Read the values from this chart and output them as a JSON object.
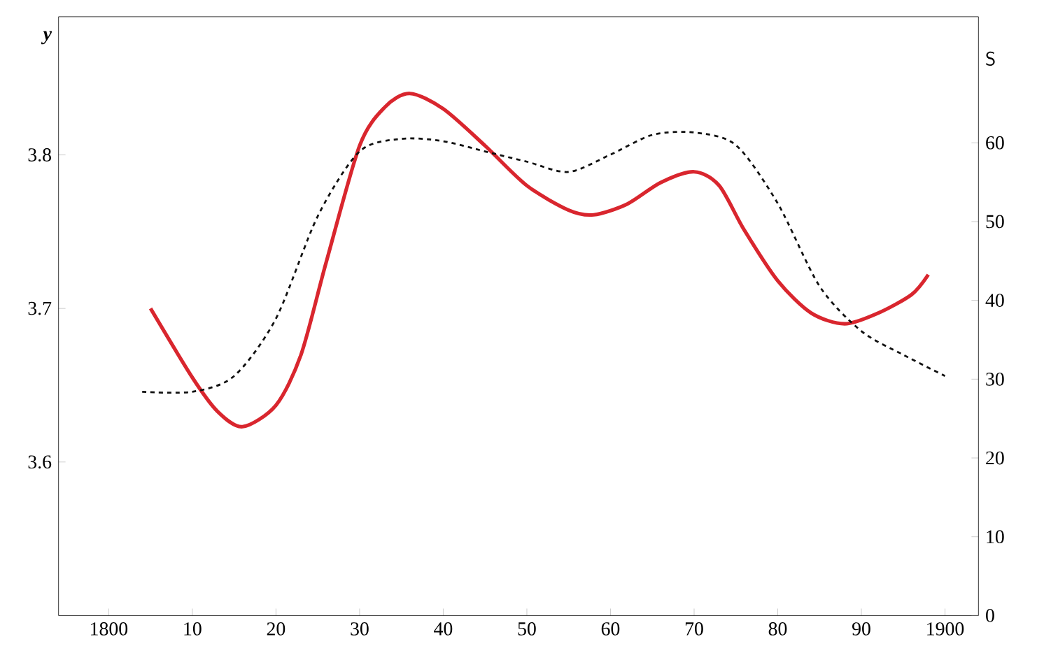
{
  "chart_data": {
    "type": "line",
    "ylabel": "y",
    "y2label": "S",
    "xlim": [
      1794,
      1904
    ],
    "xticks": [
      {
        "value": 1800,
        "label": "1800"
      },
      {
        "value": 1810,
        "label": "10"
      },
      {
        "value": 1820,
        "label": "20"
      },
      {
        "value": 1830,
        "label": "30"
      },
      {
        "value": 1840,
        "label": "40"
      },
      {
        "value": 1850,
        "label": "50"
      },
      {
        "value": 1860,
        "label": "60"
      },
      {
        "value": 1870,
        "label": "70"
      },
      {
        "value": 1880,
        "label": "80"
      },
      {
        "value": 1890,
        "label": "90"
      },
      {
        "value": 1900,
        "label": "1900"
      }
    ],
    "ylim": [
      3.5,
      3.89
    ],
    "yticks": [
      3.6,
      3.7,
      3.8
    ],
    "y2lim": [
      0,
      76
    ],
    "y2ticks": [
      0,
      10,
      20,
      30,
      40,
      50,
      60
    ],
    "series": [
      {
        "color": "#d9262e",
        "line_style": "solid",
        "x": [
          1805,
          1810,
          1813,
          1816,
          1820,
          1823,
          1826,
          1830,
          1833,
          1836,
          1840,
          1845,
          1850,
          1855,
          1858,
          1862,
          1866,
          1870,
          1873,
          1876,
          1880,
          1884,
          1888,
          1892,
          1896,
          1898
        ],
        "values": [
          3.7,
          3.655,
          3.633,
          3.623,
          3.637,
          3.67,
          3.73,
          3.806,
          3.831,
          3.84,
          3.83,
          3.806,
          3.78,
          3.764,
          3.761,
          3.768,
          3.782,
          3.789,
          3.78,
          3.751,
          3.718,
          3.697,
          3.69,
          3.697,
          3.709,
          3.722
        ]
      },
      {
        "color": "#111111",
        "line_style": "dashed",
        "axis": "y2",
        "x": [
          1804,
          1810,
          1815,
          1820,
          1825,
          1830,
          1835,
          1840,
          1845,
          1850,
          1855,
          1860,
          1865,
          1870,
          1875,
          1880,
          1885,
          1890,
          1895,
          1900
        ],
        "values": [
          28.4,
          28.4,
          30.4,
          37.7,
          50.7,
          58.9,
          60.5,
          60.2,
          58.9,
          57.6,
          56.3,
          58.5,
          61,
          61.3,
          59.7,
          52.3,
          41.8,
          36.1,
          33.1,
          30.4
        ]
      }
    ]
  }
}
